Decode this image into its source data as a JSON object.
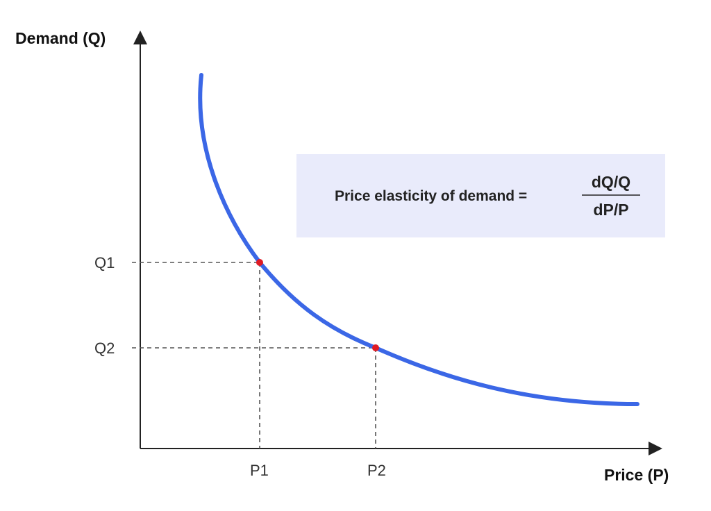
{
  "labels": {
    "y_axis": "Demand (Q)",
    "x_axis": "Price (P)",
    "q1": "Q1",
    "q2": "Q2",
    "p1": "P1",
    "p2": "P2"
  },
  "formula": {
    "label": "Price elasticity of demand =",
    "numerator": "dQ/Q",
    "denominator": "dP/P"
  },
  "colors": {
    "curve": "#3b67e6",
    "point": "#e01b24",
    "axis": "#222222",
    "guide": "#555555",
    "formula_box": "#e9ebfb"
  }
}
